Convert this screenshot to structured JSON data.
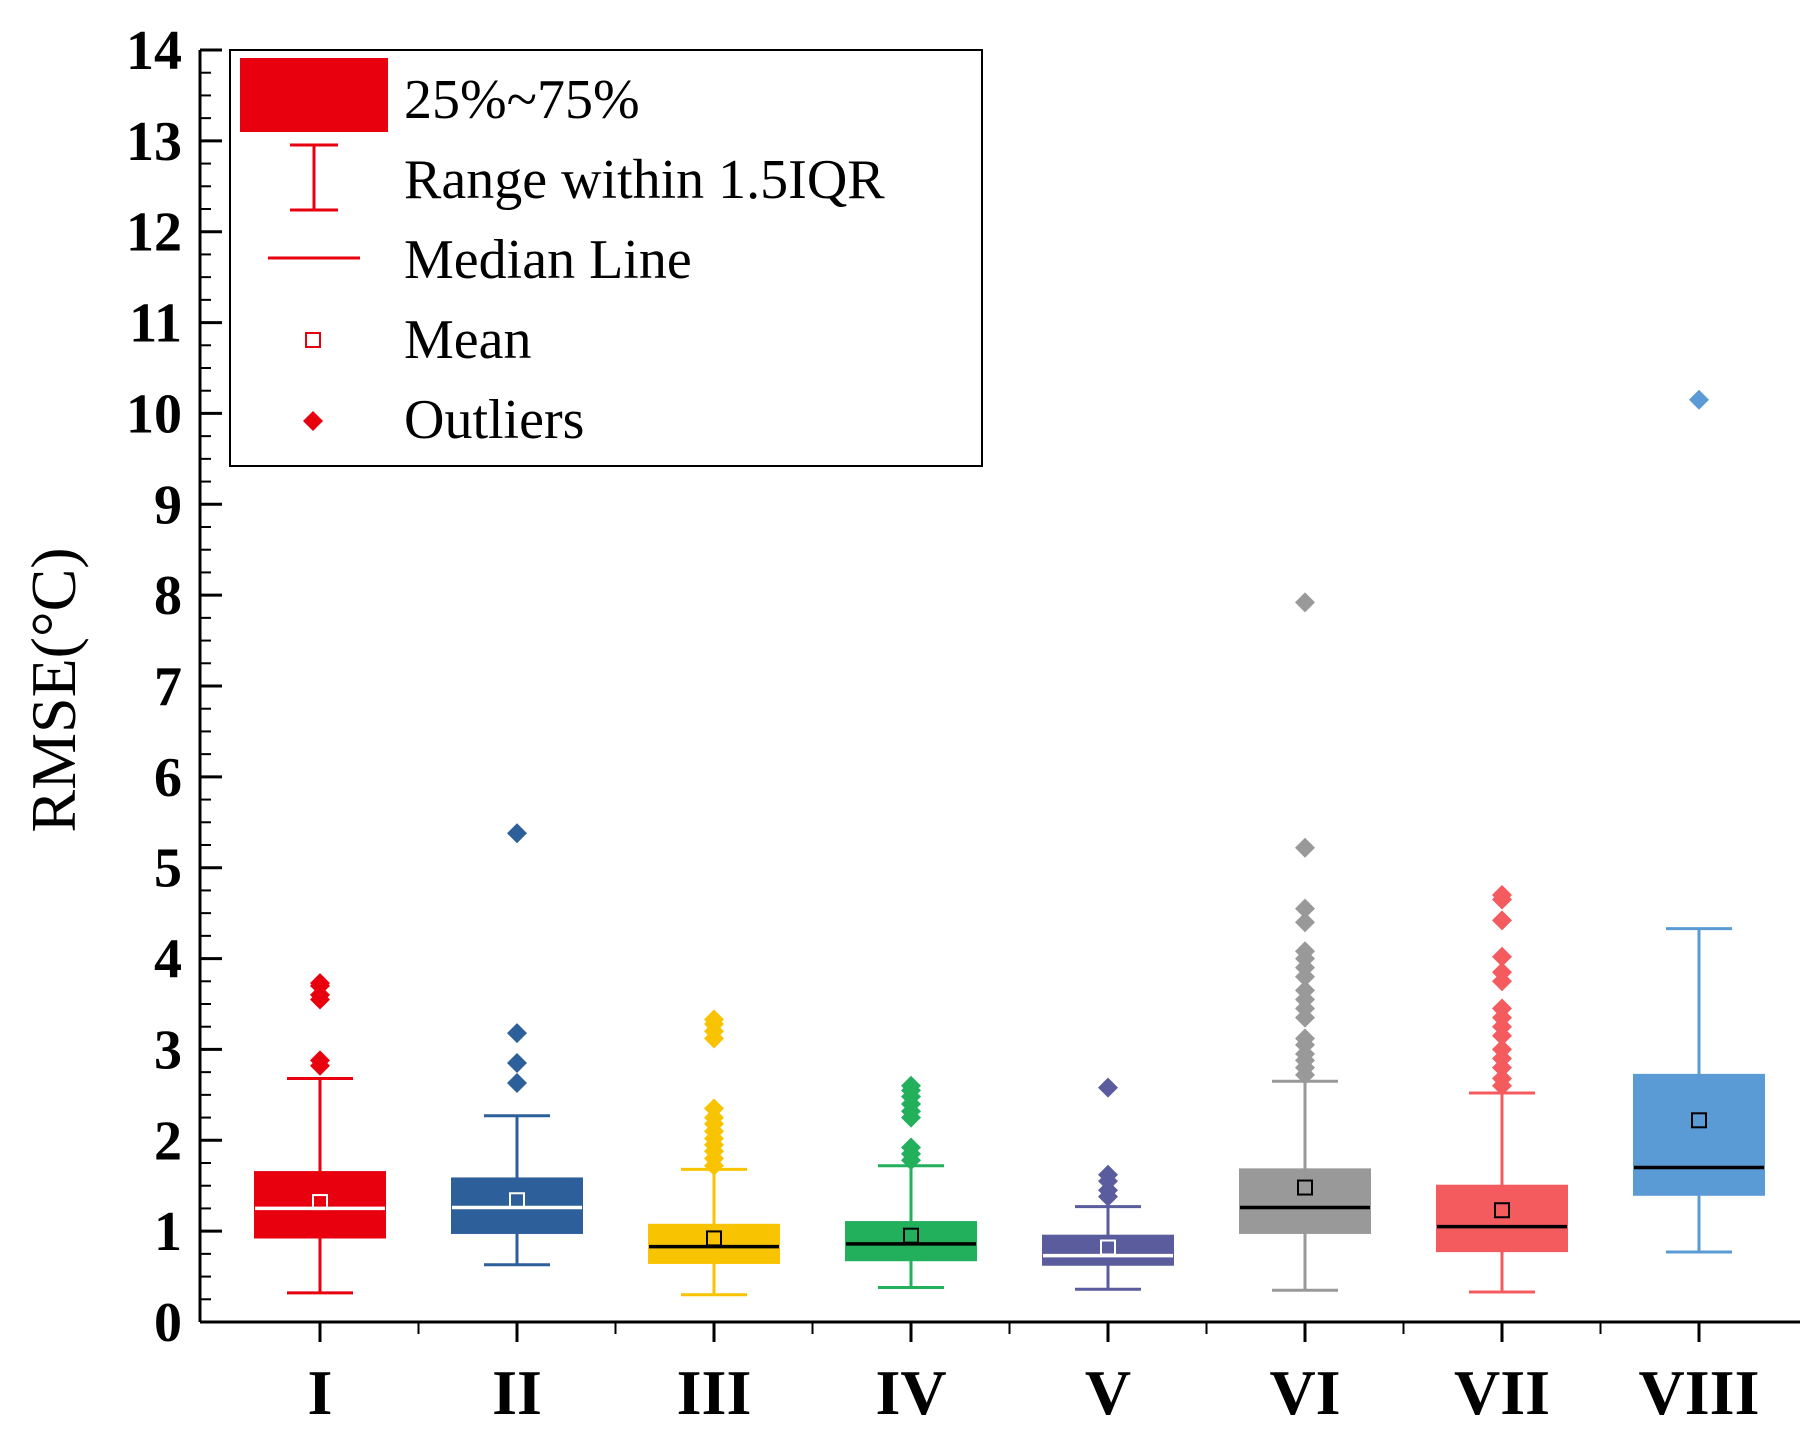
{
  "chart_data": {
    "type": "box",
    "title": "",
    "xlabel": "",
    "ylabel": "RMSE(°C)",
    "ylim": [
      0,
      14
    ],
    "yticks": [
      0,
      1,
      2,
      3,
      4,
      5,
      6,
      7,
      8,
      9,
      10,
      11,
      12,
      13,
      14
    ],
    "categories": [
      "I",
      "II",
      "III",
      "IV",
      "V",
      "VI",
      "VII",
      "VIII"
    ],
    "series": [
      {
        "name": "I",
        "color": "#e8000f",
        "median_color": "#ffffff",
        "whisker_low": 0.32,
        "q1": 0.93,
        "median": 1.25,
        "q3": 1.65,
        "whisker_high": 2.68,
        "mean": 1.32,
        "outliers": [
          2.82,
          2.88,
          3.55,
          3.6,
          3.7,
          3.73
        ]
      },
      {
        "name": "II",
        "color": "#2d5f9a",
        "median_color": "#ffffff",
        "whisker_low": 0.63,
        "q1": 0.98,
        "median": 1.26,
        "q3": 1.58,
        "whisker_high": 2.27,
        "mean": 1.34,
        "outliers": [
          2.63,
          2.85,
          3.18,
          5.38
        ]
      },
      {
        "name": "III",
        "color": "#f8c300",
        "median_color": "#000000",
        "whisker_low": 0.3,
        "q1": 0.65,
        "median": 0.83,
        "q3": 1.07,
        "whisker_high": 1.68,
        "mean": 0.92,
        "outliers": [
          1.72,
          1.8,
          1.88,
          1.95,
          2.02,
          2.1,
          2.18,
          2.25,
          2.35,
          3.12,
          3.2,
          3.28,
          3.33
        ]
      },
      {
        "name": "IV",
        "color": "#22b05c",
        "median_color": "#000000",
        "whisker_low": 0.38,
        "q1": 0.68,
        "median": 0.86,
        "q3": 1.1,
        "whisker_high": 1.72,
        "mean": 0.95,
        "outliers": [
          1.78,
          1.85,
          1.92,
          2.25,
          2.32,
          2.4,
          2.48,
          2.55,
          2.6
        ]
      },
      {
        "name": "V",
        "color": "#5a5c9e",
        "median_color": "#ffffff",
        "whisker_low": 0.36,
        "q1": 0.63,
        "median": 0.73,
        "q3": 0.95,
        "whisker_high": 1.27,
        "mean": 0.82,
        "outliers": [
          1.38,
          1.45,
          1.55,
          1.62,
          2.58
        ]
      },
      {
        "name": "VI",
        "color": "#999999",
        "median_color": "#000000",
        "whisker_low": 0.35,
        "q1": 0.98,
        "median": 1.26,
        "q3": 1.68,
        "whisker_high": 2.65,
        "mean": 1.48,
        "outliers": [
          2.72,
          2.8,
          2.88,
          2.95,
          3.05,
          3.12,
          3.35,
          3.45,
          3.55,
          3.65,
          3.8,
          3.9,
          4.0,
          4.08,
          4.4,
          4.55,
          5.22,
          7.92
        ]
      },
      {
        "name": "VII",
        "color": "#f45b5e",
        "median_color": "#000000",
        "whisker_low": 0.33,
        "q1": 0.78,
        "median": 1.05,
        "q3": 1.5,
        "whisker_high": 2.52,
        "mean": 1.23,
        "outliers": [
          2.6,
          2.68,
          2.8,
          2.9,
          3.0,
          3.15,
          3.25,
          3.35,
          3.45,
          3.75,
          3.85,
          4.02,
          4.42,
          4.65,
          4.7
        ]
      },
      {
        "name": "VIII",
        "color": "#5b9bd5",
        "median_color": "#000000",
        "whisker_low": 0.77,
        "q1": 1.4,
        "median": 1.7,
        "q3": 2.72,
        "whisker_high": 4.33,
        "mean": 2.22,
        "outliers": [
          10.15
        ]
      }
    ],
    "legend": {
      "position": "top-left",
      "items": [
        {
          "type": "box",
          "label": "25%~75%"
        },
        {
          "type": "whisker",
          "label": "Range within 1.5IQR"
        },
        {
          "type": "median",
          "label": "Median Line"
        },
        {
          "type": "mean",
          "label": "Mean"
        },
        {
          "type": "outlier",
          "label": "Outliers"
        }
      ],
      "color": "#e8000f"
    }
  }
}
